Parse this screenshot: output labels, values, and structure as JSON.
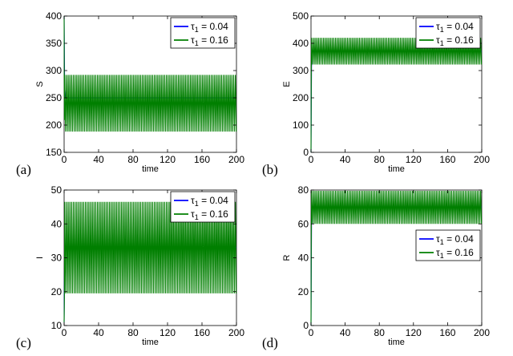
{
  "colors": {
    "series_a": "#0000ff",
    "series_b": "#007f00",
    "axis": "#000000",
    "background": "#ffffff"
  },
  "chart_data": [
    {
      "type": "line",
      "panel_label": "(a)",
      "xlabel": "time",
      "ylabel": "S",
      "xlim": [
        0,
        200
      ],
      "ylim": [
        150,
        400
      ],
      "xticks": [
        0,
        40,
        80,
        120,
        160,
        200
      ],
      "yticks": [
        150,
        200,
        250,
        300,
        350,
        400
      ],
      "grid": false,
      "legend": {
        "position": "top-right",
        "entries": [
          {
            "base": "τ",
            "sub": "1",
            "rest": " = 0.04",
            "color": "#0000ff"
          },
          {
            "base": "τ",
            "sub": "1",
            "rest": " = 0.16",
            "color": "#007f00"
          }
        ]
      },
      "series": [
        {
          "color": "#0000ff",
          "initial": 400,
          "equilibrium": 250
        },
        {
          "color": "#007f00",
          "initial": 400,
          "min": 188,
          "max": 292,
          "period": 2.0
        }
      ]
    },
    {
      "type": "line",
      "panel_label": "(b)",
      "xlabel": "time",
      "ylabel": "E",
      "xlim": [
        0,
        200
      ],
      "ylim": [
        0,
        500
      ],
      "xticks": [
        0,
        40,
        80,
        120,
        160,
        200
      ],
      "yticks": [
        0,
        100,
        200,
        300,
        400,
        500
      ],
      "grid": false,
      "legend": {
        "position": "top-right",
        "entries": [
          {
            "base": "τ",
            "sub": "1",
            "rest": " = 0.04",
            "color": "#0000ff"
          },
          {
            "base": "τ",
            "sub": "1",
            "rest": " = 0.16",
            "color": "#007f00"
          }
        ]
      },
      "series": [
        {
          "color": "#0000ff",
          "initial": 0,
          "equilibrium": 370
        },
        {
          "color": "#007f00",
          "initial": 0,
          "min": 322,
          "max": 420,
          "period": 2.0
        }
      ]
    },
    {
      "type": "line",
      "panel_label": "(c)",
      "xlabel": "time",
      "ylabel": "I",
      "xlim": [
        0,
        200
      ],
      "ylim": [
        10,
        50
      ],
      "xticks": [
        0,
        40,
        80,
        120,
        160,
        200
      ],
      "yticks": [
        10,
        20,
        30,
        40,
        50
      ],
      "grid": false,
      "legend": {
        "position": "top-right",
        "entries": [
          {
            "base": "τ",
            "sub": "1",
            "rest": " = 0.04",
            "color": "#0000ff"
          },
          {
            "base": "τ",
            "sub": "1",
            "rest": " = 0.16",
            "color": "#007f00"
          }
        ]
      },
      "series": [
        {
          "color": "#0000ff",
          "initial": 11,
          "equilibrium": 33
        },
        {
          "color": "#007f00",
          "initial": 11,
          "min": 19.5,
          "max": 46.5,
          "period": 2.0
        }
      ]
    },
    {
      "type": "line",
      "panel_label": "(d)",
      "xlabel": "time",
      "ylabel": "R",
      "xlim": [
        0,
        200
      ],
      "ylim": [
        0,
        80
      ],
      "xticks": [
        0,
        40,
        80,
        120,
        160,
        200
      ],
      "yticks": [
        0,
        20,
        40,
        60,
        80
      ],
      "grid": false,
      "legend": {
        "position": "center-right",
        "entries": [
          {
            "base": "τ",
            "sub": "1",
            "rest": " = 0.04",
            "color": "#0000ff"
          },
          {
            "base": "τ",
            "sub": "1",
            "rest": " = 0.16",
            "color": "#007f00"
          }
        ]
      },
      "series": [
        {
          "color": "#0000ff",
          "initial": 0,
          "equilibrium": 70
        },
        {
          "color": "#007f00",
          "initial": 0,
          "min": 60,
          "max": 79.5,
          "period": 2.0
        }
      ]
    }
  ]
}
